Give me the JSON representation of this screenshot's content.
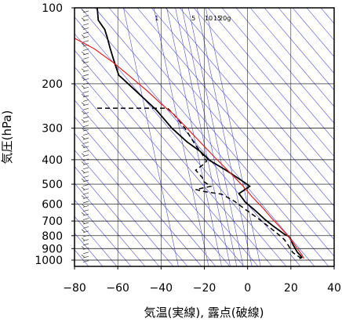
{
  "chart_data": {
    "type": "line",
    "title": "",
    "xlabel": "気温(実線), 露点(破線)",
    "ylabel": "気圧(hPa)",
    "xlim": [
      -80,
      40
    ],
    "ylim": [
      1050,
      100
    ],
    "y_scale": "log",
    "x_ticks": [
      -80,
      -60,
      -40,
      -20,
      0,
      20,
      40
    ],
    "x_tick_labels": [
      "−80",
      "−60",
      "−40",
      "−20",
      "0",
      "20",
      "40"
    ],
    "y_ticks": [
      100,
      200,
      300,
      400,
      500,
      600,
      700,
      800,
      900,
      1000
    ],
    "y_tick_labels": [
      "100",
      "200",
      "300",
      "400",
      "500",
      "600",
      "700",
      "800",
      "900",
      "1000"
    ],
    "mixing_ratio_labels": [
      "1",
      "5",
      "10",
      "15",
      "20g"
    ],
    "mixing_ratio_label_x": [
      -42,
      -25,
      -18,
      -14,
      -10.5
    ],
    "colors": {
      "temperature": "#000000",
      "dewpoint": "#000000",
      "parcel": "#e82020",
      "background_lines": "#4040e0",
      "grid": "#000000"
    },
    "series": [
      {
        "name": "",
        "style": "solid",
        "points": [
          [
            -69.5,
            100
          ],
          [
            -69,
            112
          ],
          [
            -66,
            122
          ],
          [
            -65,
            130
          ],
          [
            -63.5,
            145
          ],
          [
            -62,
            160
          ],
          [
            -60.5,
            175
          ],
          [
            -59.5,
            185
          ],
          [
            -58,
            190
          ],
          [
            -50,
            220
          ],
          [
            -42,
            255
          ],
          [
            -35,
            300
          ],
          [
            -28,
            340
          ],
          [
            -22,
            370
          ],
          [
            -19,
            392
          ],
          [
            -18,
            400
          ],
          [
            -16,
            410
          ],
          [
            -10,
            440
          ],
          [
            -5,
            470
          ],
          [
            -1,
            495
          ],
          [
            1,
            510
          ],
          [
            -4,
            545
          ],
          [
            -1,
            590
          ],
          [
            3,
            630
          ],
          [
            8,
            690
          ],
          [
            12,
            735
          ],
          [
            17,
            790
          ],
          [
            19,
            805
          ],
          [
            20,
            830
          ],
          [
            20.5,
            850
          ],
          [
            21,
            870
          ],
          [
            22,
            900
          ],
          [
            23,
            930
          ],
          [
            24.5,
            960
          ],
          [
            25,
            975
          ],
          [
            24,
            985
          ]
        ]
      },
      {
        "name": "",
        "style": "dashed",
        "points": [
          [
            -69.5,
            250
          ],
          [
            -37,
            250
          ],
          [
            -34,
            265
          ],
          [
            -29,
            300
          ],
          [
            -25,
            340
          ],
          [
            -21,
            380
          ],
          [
            -19,
            405
          ],
          [
            -20,
            415
          ],
          [
            -24,
            440
          ],
          [
            -21,
            470
          ],
          [
            -20,
            490
          ],
          [
            -17,
            510
          ],
          [
            -24,
            525
          ],
          [
            -20,
            535
          ],
          [
            -12,
            548
          ],
          [
            -10,
            560
          ],
          [
            -6,
            585
          ],
          [
            -1,
            630
          ],
          [
            5,
            685
          ],
          [
            10,
            740
          ],
          [
            15,
            800
          ],
          [
            17,
            830
          ],
          [
            19,
            880
          ],
          [
            20,
            910
          ],
          [
            21,
            935
          ],
          [
            23,
            960
          ],
          [
            25,
            985
          ]
        ]
      },
      {
        "name": "",
        "style": "parcel",
        "points": [
          [
            -80,
            132
          ],
          [
            -71,
            145
          ],
          [
            -62,
            165
          ],
          [
            -54,
            188
          ],
          [
            -46,
            215
          ],
          [
            -40,
            240
          ],
          [
            -34,
            265
          ],
          [
            -28,
            300
          ],
          [
            -22,
            340
          ],
          [
            -16,
            385
          ],
          [
            -11,
            425
          ],
          [
            -6,
            470
          ],
          [
            -2,
            510
          ],
          [
            2,
            560
          ],
          [
            7,
            620
          ],
          [
            11,
            680
          ],
          [
            15,
            740
          ],
          [
            18,
            790
          ],
          [
            21,
            850
          ],
          [
            23,
            900
          ],
          [
            25,
            950
          ],
          [
            26,
            985
          ]
        ]
      }
    ]
  }
}
